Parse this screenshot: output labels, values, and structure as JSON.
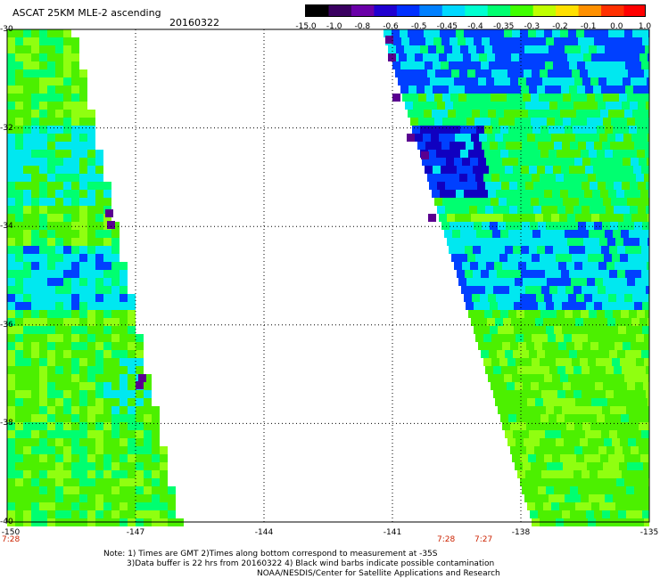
{
  "header": {
    "title": "ASCAT 25KM MLE-2 ascending",
    "date": "20160322"
  },
  "colorbar": {
    "labels": [
      "-15.0",
      "-1.0",
      "-0.8",
      "-0.6",
      "-0.5",
      "-0.45",
      "-0.4",
      "-0.35",
      "-0.3",
      "-0.2",
      "-0.1",
      "0.0",
      "1.0"
    ],
    "colors": [
      "#000000",
      "#3a0060",
      "#6a00a8",
      "#2000d0",
      "#0030ff",
      "#0080ff",
      "#00d8ff",
      "#00ffd0",
      "#00ff70",
      "#40ff00",
      "#c0ff00",
      "#ffe000",
      "#ff9000",
      "#ff3000",
      "#ff0000"
    ]
  },
  "map": {
    "lat_labels": [
      "-30",
      "-32",
      "-34",
      "-36",
      "-38",
      "-40"
    ],
    "lon_labels": [
      "-150",
      "-147",
      "-144",
      "-141",
      "-138",
      "-135"
    ],
    "lat_range": [
      -40,
      -30
    ],
    "lon_range": [
      -150,
      -135
    ],
    "grid": "dotted",
    "swath_colors": {
      "green": "#4cf000",
      "lime": "#90ff10",
      "light_green": "#00ff70",
      "cyan": "#00e8f0",
      "blue": "#0040ff",
      "dark_blue": "#1000c0",
      "purple": "#5a0090"
    }
  },
  "times": {
    "left": "7:28",
    "right_a": "7:28",
    "right_b": "7:27"
  },
  "notes": {
    "line1": "Note: 1) Times are GMT 2)Times along bottom correspond to measurement at -35S",
    "line2": "3)Data buffer is 22 hrs from 20160322 4) Black wind barbs indicate possible contamination",
    "line3": "NOAA/NESDIS/Center for Satellite Applications and Research"
  }
}
